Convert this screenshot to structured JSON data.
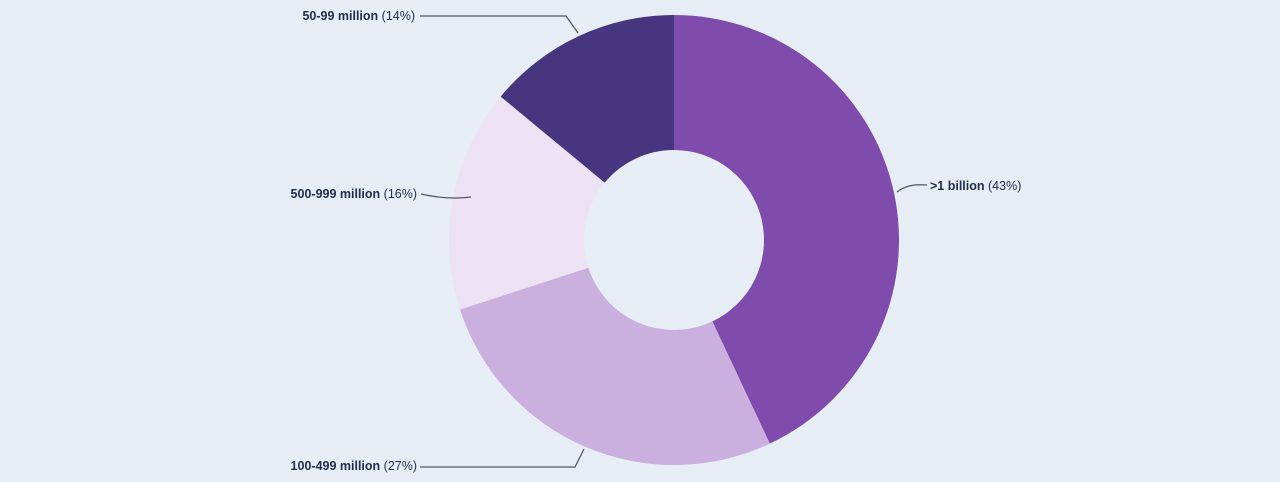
{
  "background_color": "#e7edf4",
  "text_color": "#1f2b4f",
  "leader_line_color": "#55585e",
  "chart_data": {
    "type": "pie",
    "subtype": "donut",
    "title": "",
    "start_angle_deg": 0,
    "direction": "clockwise",
    "inner_radius_ratio": 0.4,
    "segments": [
      {
        "label": ">1 billion",
        "value": 43,
        "pct_text": "(43%)",
        "color": "#7f4bac"
      },
      {
        "label": "100-499 million",
        "value": 27,
        "pct_text": "(27%)",
        "color": "#cbafde"
      },
      {
        "label": "500-999 million",
        "value": 16,
        "pct_text": "(16%)",
        "color": "#ece2f4"
      },
      {
        "label": "50-99 million",
        "value": 14,
        "pct_text": "(14%)",
        "color": "#46357f"
      }
    ]
  }
}
